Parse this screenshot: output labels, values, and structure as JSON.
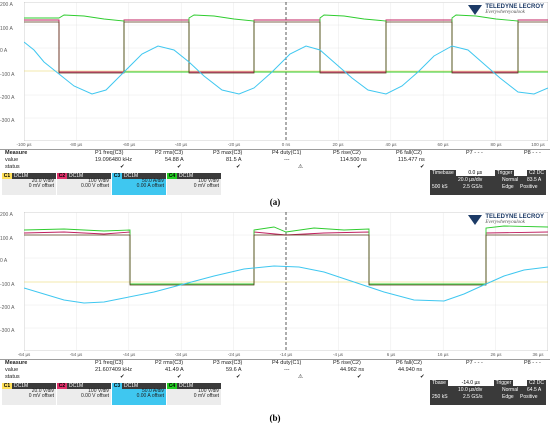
{
  "ylabels": [
    "200 A",
    "100 A",
    "0 A",
    "-100 A",
    "-200 A",
    "-300 A"
  ],
  "brand": {
    "name": "TELEDYNE LECROY",
    "tagline": "Everywhereyoulook"
  },
  "channel_colors": {
    "C1": "#ffe05a",
    "C2": "#e0306a",
    "C3": "#3fc7f0",
    "C4": "#22cc22"
  },
  "measure_header": {
    "label": "Measure",
    "params": [
      "P1 freq(C3)",
      "P2 rms(C3)",
      "P3 max(C3)",
      "P4 duty(C1)",
      "P5 rise(C2)",
      "P6 fall(C2)",
      "P7 - - -",
      "P8 - - -"
    ]
  },
  "row_labels": {
    "value": "value",
    "status": "status"
  },
  "panels": [
    {
      "id": "a",
      "caption": "(a)",
      "xlabels": [
        "-100 µs",
        "-80 µs",
        "-60 µs",
        "-40 µs",
        "-20 µs",
        "0 ns",
        "20 µs",
        "40 µs",
        "60 µs",
        "80 µs",
        "100 µs"
      ],
      "values": [
        "19.096480 kHz",
        "54.88 A",
        "81.5 A",
        "---",
        "114.500 ns",
        "115.477 ns",
        "",
        ""
      ],
      "status": [
        "✔",
        "✔",
        "✔",
        "⚠",
        "✔",
        "✔",
        "",
        ""
      ],
      "channels": [
        {
          "tag": "C1",
          "cpl": "DC1M",
          "scale": "20.0 V/div",
          "offset": "0 mV offset"
        },
        {
          "tag": "C2",
          "cpl": "DC1M",
          "scale": "100 V/div",
          "offset": "0.00 V offset"
        },
        {
          "tag": "C3",
          "cpl": "DC1M",
          "scale": "50.0 A/div",
          "offset": "0.00 A offset"
        },
        {
          "tag": "C4",
          "cpl": "DC1M",
          "scale": "100 V/div",
          "offset": "0 mV offset"
        }
      ],
      "timebase": {
        "label": "Timebase",
        "tdelay": "0.0 µs",
        "trig_label": "Trigger",
        "trig_ch": "C2 DC",
        "div": "20.0 µs/div",
        "mode": "Normal",
        "level": "83.5 A",
        "samples": "500 kS",
        "rate": "2.5 GS/s",
        "type": "Edge",
        "slope": "Positive"
      }
    },
    {
      "id": "b",
      "caption": "(b)",
      "xlabels": [
        "-64 µs",
        "-54 µs",
        "-44 µs",
        "-34 µs",
        "-24 µs",
        "-14 µs",
        "-4 µs",
        "6 µs",
        "16 µs",
        "26 µs",
        "36 µs"
      ],
      "values": [
        "21.607409 kHz",
        "41.49 A",
        "59.6 A",
        "---",
        "44.962 ns",
        "44.940 ns",
        "",
        ""
      ],
      "status": [
        "✔",
        "✔",
        "✔",
        "⚠",
        "✔",
        "✔",
        "",
        ""
      ],
      "channels": [
        {
          "tag": "C1",
          "cpl": "DC1M",
          "scale": "20.0 V/div",
          "offset": "0 mV offset"
        },
        {
          "tag": "C2",
          "cpl": "DC1M",
          "scale": "100 V/div",
          "offset": "0.00 V offset"
        },
        {
          "tag": "C3",
          "cpl": "DC1M",
          "scale": "50.0 A/div",
          "offset": "0.00 A offset"
        },
        {
          "tag": "C4",
          "cpl": "DC1M",
          "scale": "100 V/div",
          "offset": "0 mV offset"
        }
      ],
      "timebase": {
        "label": "Tbase",
        "tdelay": "-14.0 µs",
        "trig_label": "Trigger",
        "trig_ch": "C2 DC",
        "div": "10.0 µs/div",
        "mode": "Normal",
        "level": "64.5 A",
        "samples": "250 kS",
        "rate": "2.5 GS/s",
        "type": "Edge",
        "slope": "Positive"
      }
    }
  ]
}
